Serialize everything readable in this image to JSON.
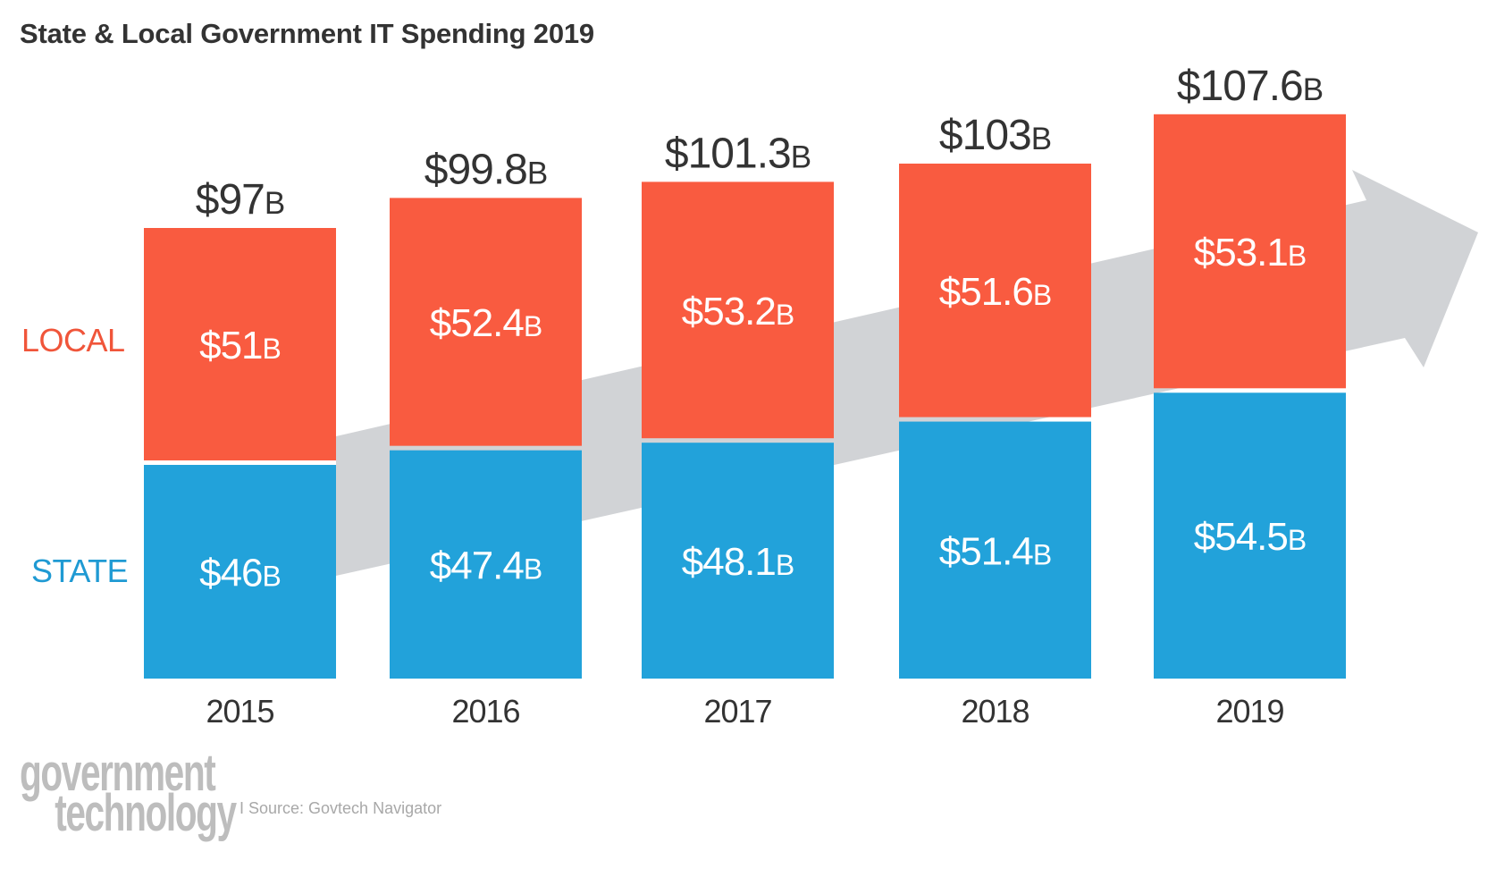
{
  "title": "State & Local Government IT Spending 2019",
  "logo": {
    "line1": "government",
    "line2": "technology"
  },
  "source": "I Source: Govtech Navigator",
  "colors": {
    "local": "#F95B40",
    "state": "#22A2DA",
    "local_label": "#F0553A",
    "state_label": "#1F9AD3",
    "arrow": "#D1D3D6",
    "text": "#333333"
  },
  "chart_data": {
    "type": "bar",
    "stacked": true,
    "title": "State & Local Government IT Spending 2019",
    "categories": [
      "2015",
      "2016",
      "2017",
      "2018",
      "2019"
    ],
    "unit_suffix": "B",
    "series": [
      {
        "name": "STATE",
        "values": [
          46,
          47.4,
          48.1,
          51.4,
          54.5
        ],
        "labels": [
          "$46",
          "$47.4",
          "$48.1",
          "$51.4",
          "$54.5"
        ]
      },
      {
        "name": "LOCAL",
        "values": [
          51,
          52.4,
          53.2,
          51.6,
          53.1
        ],
        "labels": [
          "$51",
          "$52.4",
          "$53.2",
          "$51.6",
          "$53.1"
        ]
      }
    ],
    "totals": [
      97,
      99.8,
      101.3,
      103,
      107.6
    ],
    "total_labels": [
      "$97",
      "$99.8",
      "$101.3",
      "$103",
      "$107.6"
    ],
    "decoration": "upward trend arrow behind bars",
    "grid": false,
    "legend": "left"
  }
}
